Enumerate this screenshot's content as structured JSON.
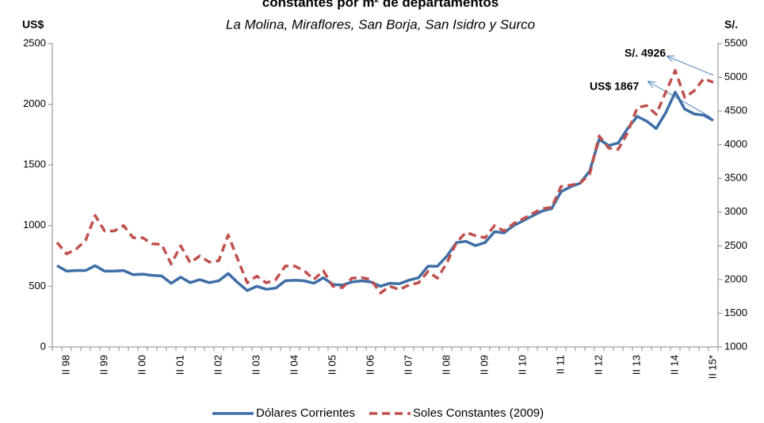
{
  "chart_data": {
    "type": "line",
    "title": "constantes por m² de departamentos",
    "subtitle": "La Molina, Miraflores, San Borja, San Isidro y Surco",
    "y_label": "US$",
    "y2_label": "S/.",
    "annotations": [
      "S/. 4926",
      "US$ 1867"
    ],
    "categories": [
      null,
      "II 98",
      null,
      null,
      null,
      "II 99",
      null,
      null,
      null,
      "II 00",
      null,
      null,
      null,
      "II 01",
      null,
      null,
      null,
      "II 02",
      null,
      null,
      null,
      "II 03",
      null,
      null,
      null,
      "II 04",
      null,
      null,
      null,
      "II 05",
      null,
      null,
      null,
      "II 06",
      null,
      null,
      null,
      "II 07",
      null,
      null,
      null,
      "II 08",
      null,
      null,
      null,
      "II 09",
      null,
      null,
      null,
      "II 10",
      null,
      null,
      null,
      "II 11",
      null,
      null,
      null,
      "II 12",
      null,
      null,
      null,
      "II 13",
      null,
      null,
      null,
      "II 14",
      null,
      null,
      null,
      "II 15*"
    ],
    "series": [
      {
        "name": "Dólares Corrientes",
        "color": "#3e6ea6",
        "axis": "y",
        "values": [
          670,
          625,
          630,
          630,
          670,
          625,
          625,
          630,
          595,
          600,
          590,
          585,
          525,
          575,
          530,
          555,
          530,
          545,
          605,
          530,
          465,
          500,
          475,
          485,
          545,
          550,
          545,
          525,
          570,
          515,
          510,
          535,
          545,
          535,
          500,
          525,
          520,
          550,
          570,
          665,
          665,
          750,
          860,
          870,
          835,
          860,
          950,
          940,
          1000,
          1040,
          1080,
          1120,
          1140,
          1280,
          1320,
          1350,
          1450,
          1710,
          1660,
          1680,
          1800,
          1900,
          1860,
          1800,
          1930,
          2100,
          1960,
          1920,
          1910,
          1867
        ]
      },
      {
        "name": "Soles Constantes (2009)",
        "color": "#c0504d",
        "axis": "y2",
        "dashed": true,
        "values": [
          2550,
          2380,
          2450,
          2580,
          2950,
          2720,
          2720,
          2800,
          2620,
          2620,
          2530,
          2520,
          2230,
          2500,
          2250,
          2350,
          2260,
          2280,
          2660,
          2300,
          1950,
          2050,
          1950,
          2000,
          2200,
          2200,
          2130,
          2000,
          2130,
          1900,
          1880,
          2020,
          2030,
          2000,
          1800,
          1900,
          1850,
          1920,
          1950,
          2120,
          2020,
          2250,
          2550,
          2700,
          2650,
          2620,
          2800,
          2720,
          2830,
          2900,
          2980,
          3050,
          3070,
          3380,
          3400,
          3430,
          3560,
          4130,
          3950,
          3930,
          4180,
          4550,
          4580,
          4450,
          4780,
          5100,
          4700,
          4800,
          4980,
          4926
        ]
      }
    ],
    "ylim": [
      0,
      2500
    ],
    "yticks": [
      0,
      500,
      1000,
      1500,
      2000,
      2500
    ],
    "y2lim": [
      1000,
      5500
    ],
    "y2ticks": [
      1000,
      1500,
      2000,
      2500,
      3000,
      3500,
      4000,
      4500,
      5000,
      5500
    ],
    "legend": "bottom"
  }
}
